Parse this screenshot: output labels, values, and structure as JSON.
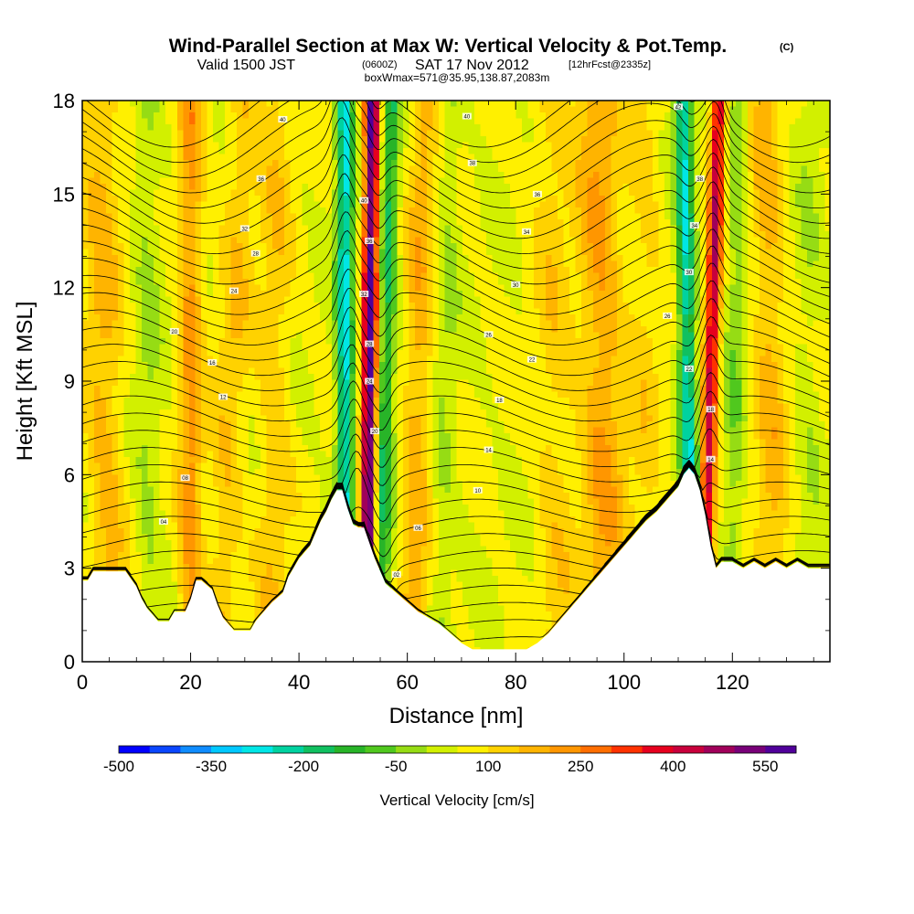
{
  "title": {
    "main": "Wind-Parallel Section at Max W: Vertical Velocity & Pot.Temp.",
    "copyright": "(C)",
    "valid_a": "Valid 1500 JST",
    "valid_z": "(0600Z)",
    "valid_b": "SAT 17 Nov 2012",
    "fcst": "[12hrFcst@2335z]",
    "boxwmax": "boxWmax=571@35.95,138.87,2083m"
  },
  "chart_data": {
    "type": "heatmap",
    "xlabel": "Distance [nm]",
    "ylabel": "Height [Kft MSL]",
    "xlim": [
      0,
      138
    ],
    "ylim": [
      0,
      18
    ],
    "x_ticks": [
      0,
      20,
      40,
      60,
      80,
      100,
      120
    ],
    "y_ticks": [
      0,
      3,
      6,
      9,
      12,
      15,
      18
    ],
    "colorbar": {
      "title": "Vertical Velocity [cm/s]",
      "labels": [
        "-500",
        "-350",
        "-200",
        "-50",
        "100",
        "250",
        "400",
        "550"
      ],
      "colors": [
        "#0000ff",
        "#0a46ff",
        "#0f8cff",
        "#00c8ff",
        "#00e6e6",
        "#00d2a0",
        "#10c060",
        "#28b428",
        "#50c81e",
        "#96dc14",
        "#d2f000",
        "#fff000",
        "#ffd200",
        "#ffb400",
        "#ff9600",
        "#ff6e00",
        "#ff3200",
        "#e6001e",
        "#c8003c",
        "#a0005a",
        "#780078",
        "#50009a"
      ]
    },
    "terrain": [
      [
        0,
        2.6
      ],
      [
        1,
        2.6
      ],
      [
        2,
        2.9
      ],
      [
        8,
        2.9
      ],
      [
        10,
        2.4
      ],
      [
        11,
        2.0
      ],
      [
        12,
        1.7
      ],
      [
        13,
        1.5
      ],
      [
        14,
        1.3
      ],
      [
        16,
        1.3
      ],
      [
        17,
        1.6
      ],
      [
        19,
        1.6
      ],
      [
        20,
        2.0
      ],
      [
        21,
        2.6
      ],
      [
        22,
        2.6
      ],
      [
        24,
        2.3
      ],
      [
        25,
        1.8
      ],
      [
        26,
        1.4
      ],
      [
        27,
        1.2
      ],
      [
        28,
        1.0
      ],
      [
        31,
        1.0
      ],
      [
        32,
        1.3
      ],
      [
        33,
        1.5
      ],
      [
        35,
        1.9
      ],
      [
        37,
        2.2
      ],
      [
        38,
        2.7
      ],
      [
        40,
        3.3
      ],
      [
        42,
        3.7
      ],
      [
        43,
        4.1
      ],
      [
        44,
        4.5
      ],
      [
        45,
        4.8
      ],
      [
        46,
        5.2
      ],
      [
        47,
        5.5
      ],
      [
        48,
        5.5
      ],
      [
        49,
        4.9
      ],
      [
        50,
        4.4
      ],
      [
        51,
        4.3
      ],
      [
        52,
        4.3
      ],
      [
        53,
        3.8
      ],
      [
        54,
        3.3
      ],
      [
        55,
        2.9
      ],
      [
        56,
        2.5
      ],
      [
        58,
        2.2
      ],
      [
        60,
        1.9
      ],
      [
        62,
        1.6
      ],
      [
        64,
        1.4
      ],
      [
        66,
        1.2
      ],
      [
        68,
        0.9
      ],
      [
        70,
        0.6
      ],
      [
        72,
        0.4
      ],
      [
        74,
        0.4
      ],
      [
        78,
        0.4
      ],
      [
        82,
        0.4
      ],
      [
        84,
        0.6
      ],
      [
        86,
        0.9
      ],
      [
        88,
        1.3
      ],
      [
        90,
        1.7
      ],
      [
        92,
        2.1
      ],
      [
        94,
        2.5
      ],
      [
        96,
        2.9
      ],
      [
        98,
        3.3
      ],
      [
        100,
        3.7
      ],
      [
        102,
        4.1
      ],
      [
        104,
        4.5
      ],
      [
        106,
        4.8
      ],
      [
        108,
        5.2
      ],
      [
        110,
        5.6
      ],
      [
        111,
        6.0
      ],
      [
        112,
        6.2
      ],
      [
        113,
        6.0
      ],
      [
        114,
        5.5
      ],
      [
        115,
        4.7
      ],
      [
        116,
        3.7
      ],
      [
        117,
        3.0
      ],
      [
        118,
        3.2
      ],
      [
        120,
        3.2
      ],
      [
        122,
        3.0
      ],
      [
        124,
        3.2
      ],
      [
        126,
        3.0
      ],
      [
        128,
        3.2
      ],
      [
        130,
        3.0
      ],
      [
        132,
        3.2
      ],
      [
        134,
        3.0
      ],
      [
        138,
        3.0
      ]
    ],
    "updrafts": [
      {
        "x_bottom": 52.5,
        "x_top": 53.5,
        "value": 520
      },
      {
        "x_bottom": 114.5,
        "x_top": 117.5,
        "value": 380
      }
    ],
    "downdrafts": [
      {
        "x_bottom": 48.5,
        "x_top": 48.5,
        "value": -320
      },
      {
        "x_bottom": 55.0,
        "x_top": 57.0,
        "value": -210
      },
      {
        "x_bottom": 112.5,
        "x_top": 111.0,
        "value": -300
      }
    ],
    "contour_labels": [
      {
        "x": 37,
        "y": 17.4,
        "text": "40"
      },
      {
        "x": 33,
        "y": 15.5,
        "text": "36"
      },
      {
        "x": 30,
        "y": 13.9,
        "text": "32"
      },
      {
        "x": 32,
        "y": 13.1,
        "text": "28"
      },
      {
        "x": 28,
        "y": 11.9,
        "text": "24"
      },
      {
        "x": 17,
        "y": 10.6,
        "text": "20"
      },
      {
        "x": 24,
        "y": 9.6,
        "text": "16"
      },
      {
        "x": 26,
        "y": 8.5,
        "text": "12"
      },
      {
        "x": 19,
        "y": 5.9,
        "text": "08"
      },
      {
        "x": 15,
        "y": 4.5,
        "text": "04"
      },
      {
        "x": 71,
        "y": 17.5,
        "text": "40"
      },
      {
        "x": 72,
        "y": 16.0,
        "text": "38"
      },
      {
        "x": 84,
        "y": 15.0,
        "text": "36"
      },
      {
        "x": 82,
        "y": 13.8,
        "text": "34"
      },
      {
        "x": 80,
        "y": 12.1,
        "text": "30"
      },
      {
        "x": 75,
        "y": 10.5,
        "text": "26"
      },
      {
        "x": 83,
        "y": 9.7,
        "text": "22"
      },
      {
        "x": 77,
        "y": 8.4,
        "text": "18"
      },
      {
        "x": 75,
        "y": 6.8,
        "text": "14"
      },
      {
        "x": 73,
        "y": 5.5,
        "text": "10"
      },
      {
        "x": 62,
        "y": 4.3,
        "text": "06"
      },
      {
        "x": 58,
        "y": 2.8,
        "text": "02"
      },
      {
        "x": 110,
        "y": 17.8,
        "text": "42"
      },
      {
        "x": 114,
        "y": 15.5,
        "text": "38"
      },
      {
        "x": 113,
        "y": 14.0,
        "text": "34"
      },
      {
        "x": 112,
        "y": 12.5,
        "text": "30"
      },
      {
        "x": 108,
        "y": 11.1,
        "text": "26"
      },
      {
        "x": 112,
        "y": 9.4,
        "text": "22"
      },
      {
        "x": 116,
        "y": 8.1,
        "text": "18"
      },
      {
        "x": 116,
        "y": 6.5,
        "text": "14"
      },
      {
        "x": 52,
        "y": 14.8,
        "text": "40"
      },
      {
        "x": 53,
        "y": 13.5,
        "text": "36"
      },
      {
        "x": 52,
        "y": 11.8,
        "text": "32"
      },
      {
        "x": 53,
        "y": 10.2,
        "text": "28"
      },
      {
        "x": 53,
        "y": 9.0,
        "text": "24"
      },
      {
        "x": 54,
        "y": 7.4,
        "text": "20"
      }
    ]
  }
}
